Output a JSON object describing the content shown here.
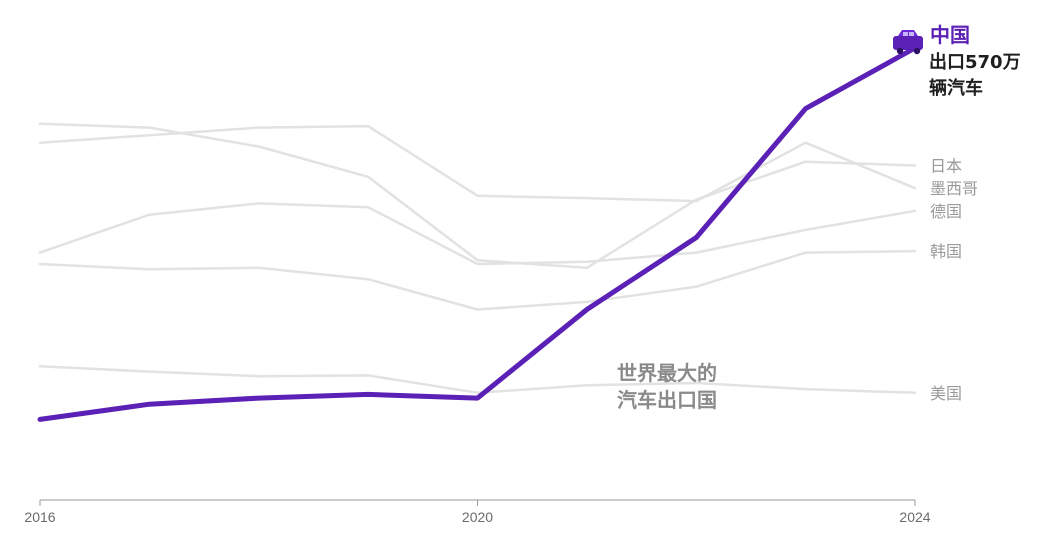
{
  "chart_data": {
    "type": "line",
    "x": [
      2016,
      2017,
      2018,
      2019,
      2020,
      2021,
      2022,
      2023,
      2024
    ],
    "x_ticks": [
      "2016",
      "2020",
      "2024"
    ],
    "xlim": [
      2016,
      2024
    ],
    "ylim": [
      0,
      620
    ],
    "grid": false,
    "highlight_color": "#5b21b6",
    "muted_color": "#e2e2e2",
    "series": [
      {
        "name": "日本",
        "values": [
          470,
          465,
          440,
          400,
          290,
          280,
          370,
          420,
          415
        ],
        "highlight": false
      },
      {
        "name": "墨西哥",
        "values": [
          445,
          455,
          465,
          467,
          375,
          372,
          368,
          445,
          385
        ]
      },
      {
        "name": "德国",
        "values": [
          300,
          350,
          365,
          360,
          285,
          288,
          300,
          330,
          355
        ]
      },
      {
        "name": "韩国",
        "values": [
          285,
          278,
          280,
          265,
          225,
          235,
          255,
          300,
          302
        ]
      },
      {
        "name": "美国",
        "values": [
          150,
          143,
          137,
          138,
          115,
          125,
          128,
          120,
          115
        ]
      },
      {
        "name": "中国",
        "values": [
          80,
          100,
          108,
          113,
          108,
          225,
          320,
          490,
          570
        ],
        "highlight": true
      }
    ],
    "highlight_label": {
      "title": "中国",
      "line1": "出口570万",
      "line2": "辆汽车",
      "icon": "car-icon"
    },
    "annotation": {
      "line1": "世界最大的",
      "line2": "汽车出口国"
    }
  }
}
